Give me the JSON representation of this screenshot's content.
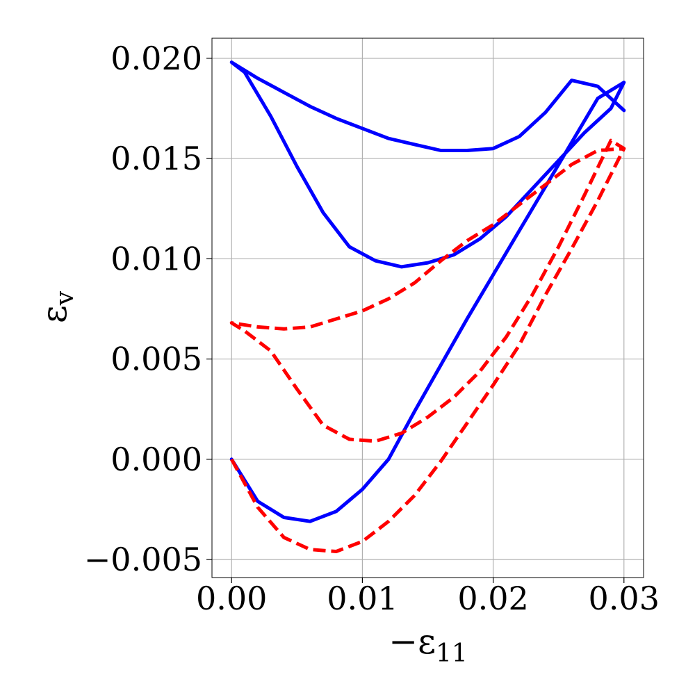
{
  "chart_data": {
    "type": "line",
    "xlabel": "−ε",
    "xlabel_sub": "11",
    "ylabel": "ε",
    "ylabel_sub": "v",
    "xlim": [
      -0.0015,
      0.0315
    ],
    "ylim": [
      -0.0059,
      0.021
    ],
    "grid": true,
    "legend": "none",
    "xticks": [
      {
        "value": 0.0,
        "label": "0.00"
      },
      {
        "value": 0.01,
        "label": "0.01"
      },
      {
        "value": 0.02,
        "label": "0.02"
      },
      {
        "value": 0.03,
        "label": "0.03"
      }
    ],
    "yticks": [
      {
        "value": -0.005,
        "label": "−0.005"
      },
      {
        "value": 0.0,
        "label": "0.000"
      },
      {
        "value": 0.005,
        "label": "0.005"
      },
      {
        "value": 0.01,
        "label": "0.010"
      },
      {
        "value": 0.015,
        "label": "0.015"
      },
      {
        "value": 0.02,
        "label": "0.020"
      }
    ],
    "series": [
      {
        "color": "#0000ff",
        "style": "solid",
        "x": [
          0.0,
          0.002,
          0.004,
          0.006,
          0.008,
          0.01,
          0.012,
          0.014,
          0.016,
          0.018,
          0.02,
          0.022,
          0.024,
          0.026,
          0.028,
          0.03,
          0.029,
          0.027,
          0.025,
          0.023,
          0.021,
          0.019,
          0.017,
          0.015,
          0.013,
          0.011,
          0.009,
          0.007,
          0.005,
          0.003,
          0.001,
          0.0,
          0.002,
          0.004,
          0.006,
          0.008,
          0.01,
          0.012,
          0.014,
          0.016,
          0.018,
          0.02,
          0.022,
          0.024,
          0.026,
          0.028,
          0.03
        ],
        "y": [
          0.0,
          -0.0021,
          -0.0029,
          -0.0031,
          -0.0026,
          -0.0015,
          0.0,
          0.0024,
          0.0047,
          0.007,
          0.0092,
          0.0114,
          0.0136,
          0.0158,
          0.018,
          0.0188,
          0.0175,
          0.0163,
          0.0149,
          0.0135,
          0.0121,
          0.011,
          0.0102,
          0.0098,
          0.0096,
          0.0099,
          0.0106,
          0.0123,
          0.0146,
          0.0171,
          0.0193,
          0.0198,
          0.019,
          0.0183,
          0.0176,
          0.017,
          0.0165,
          0.016,
          0.0157,
          0.0154,
          0.0154,
          0.0155,
          0.0161,
          0.0173,
          0.0189,
          0.0186,
          0.0174
        ]
      },
      {
        "color": "#ff0000",
        "style": "dashed",
        "x": [
          0.0,
          0.002,
          0.004,
          0.006,
          0.008,
          0.01,
          0.012,
          0.014,
          0.016,
          0.018,
          0.02,
          0.022,
          0.024,
          0.026,
          0.028,
          0.03,
          0.029,
          0.027,
          0.025,
          0.023,
          0.021,
          0.019,
          0.017,
          0.015,
          0.013,
          0.011,
          0.009,
          0.007,
          0.005,
          0.003,
          0.001,
          0.0,
          0.002,
          0.004,
          0.006,
          0.008,
          0.01,
          0.012,
          0.014,
          0.016,
          0.018,
          0.02,
          0.022,
          0.024,
          0.026,
          0.028,
          0.03
        ],
        "y": [
          0.0,
          -0.0024,
          -0.0039,
          -0.0045,
          -0.0046,
          -0.0041,
          -0.0031,
          -0.0018,
          -0.0001,
          0.0018,
          0.0037,
          0.0057,
          0.0082,
          0.0105,
          0.0129,
          0.0155,
          0.0159,
          0.0132,
          0.0106,
          0.0082,
          0.0061,
          0.0044,
          0.0031,
          0.0021,
          0.0013,
          0.0009,
          0.001,
          0.0017,
          0.0035,
          0.0054,
          0.0064,
          0.0068,
          0.0066,
          0.0065,
          0.0066,
          0.007,
          0.0074,
          0.008,
          0.0088,
          0.0099,
          0.0109,
          0.0117,
          0.0127,
          0.0137,
          0.0147,
          0.0154,
          0.0155
        ]
      }
    ]
  }
}
